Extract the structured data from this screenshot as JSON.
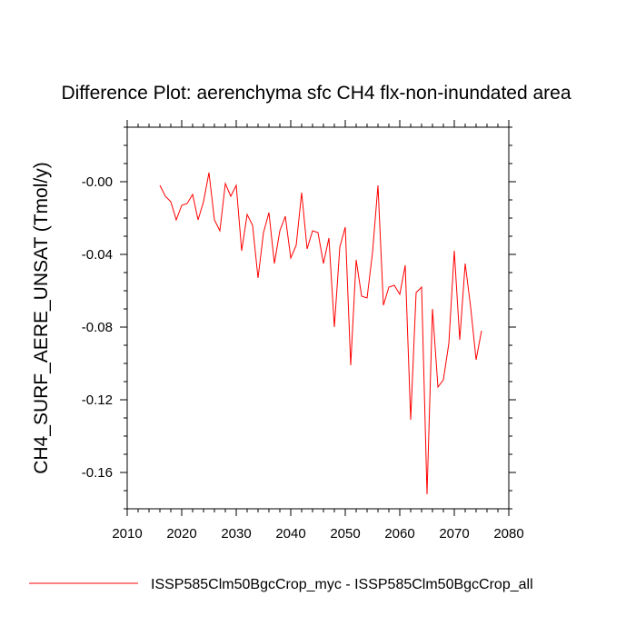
{
  "chart_data": {
    "type": "line",
    "title": "Difference Plot: aerenchyma sfc CH4 flx-non-inundated area",
    "xlabel": "",
    "ylabel": "CH4_SURF_AERE_UNSAT  (Tmol/y)",
    "xlim": [
      2010,
      2080
    ],
    "ylim": [
      -0.18,
      0.03
    ],
    "xticks": [
      2010,
      2020,
      2030,
      2040,
      2050,
      2060,
      2070,
      2080
    ],
    "xtick_labels": [
      "2010",
      "2020",
      "2030",
      "2040",
      "2050",
      "2060",
      "2070",
      "2080"
    ],
    "yticks": [
      -0.16,
      -0.12,
      -0.08,
      -0.04,
      0.0
    ],
    "ytick_labels": [
      "-0.16",
      "-0.12",
      "-0.08",
      "-0.04",
      "-0.00"
    ],
    "grid": false,
    "legend_position": "bottom",
    "series": [
      {
        "name": "ISSP585Clm50BgcCrop_myc - ISSP585Clm50BgcCrop_all",
        "color": "#ff0000",
        "x": [
          2016,
          2017,
          2018,
          2019,
          2020,
          2021,
          2022,
          2023,
          2024,
          2025,
          2026,
          2027,
          2028,
          2029,
          2030,
          2031,
          2032,
          2033,
          2034,
          2035,
          2036,
          2037,
          2038,
          2039,
          2040,
          2041,
          2042,
          2043,
          2044,
          2045,
          2046,
          2047,
          2048,
          2049,
          2050,
          2051,
          2052,
          2053,
          2054,
          2055,
          2056,
          2057,
          2058,
          2059,
          2060,
          2061,
          2062,
          2063,
          2064,
          2065,
          2066,
          2067,
          2068,
          2069,
          2070,
          2071,
          2072,
          2073,
          2074,
          2075
        ],
        "y": [
          -0.002,
          -0.008,
          -0.011,
          -0.021,
          -0.013,
          -0.012,
          -0.007,
          -0.021,
          -0.011,
          0.005,
          -0.021,
          -0.027,
          -0.001,
          -0.008,
          -0.002,
          -0.038,
          -0.018,
          -0.024,
          -0.053,
          -0.028,
          -0.017,
          -0.045,
          -0.027,
          -0.019,
          -0.042,
          -0.035,
          -0.006,
          -0.037,
          -0.027,
          -0.028,
          -0.045,
          -0.031,
          -0.08,
          -0.036,
          -0.025,
          -0.101,
          -0.043,
          -0.063,
          -0.064,
          -0.039,
          -0.002,
          -0.068,
          -0.058,
          -0.057,
          -0.062,
          -0.046,
          -0.131,
          -0.061,
          -0.058,
          -0.172,
          -0.07,
          -0.113,
          -0.109,
          -0.089,
          -0.038,
          -0.087,
          -0.045,
          -0.069,
          -0.098,
          -0.082
        ]
      }
    ]
  }
}
